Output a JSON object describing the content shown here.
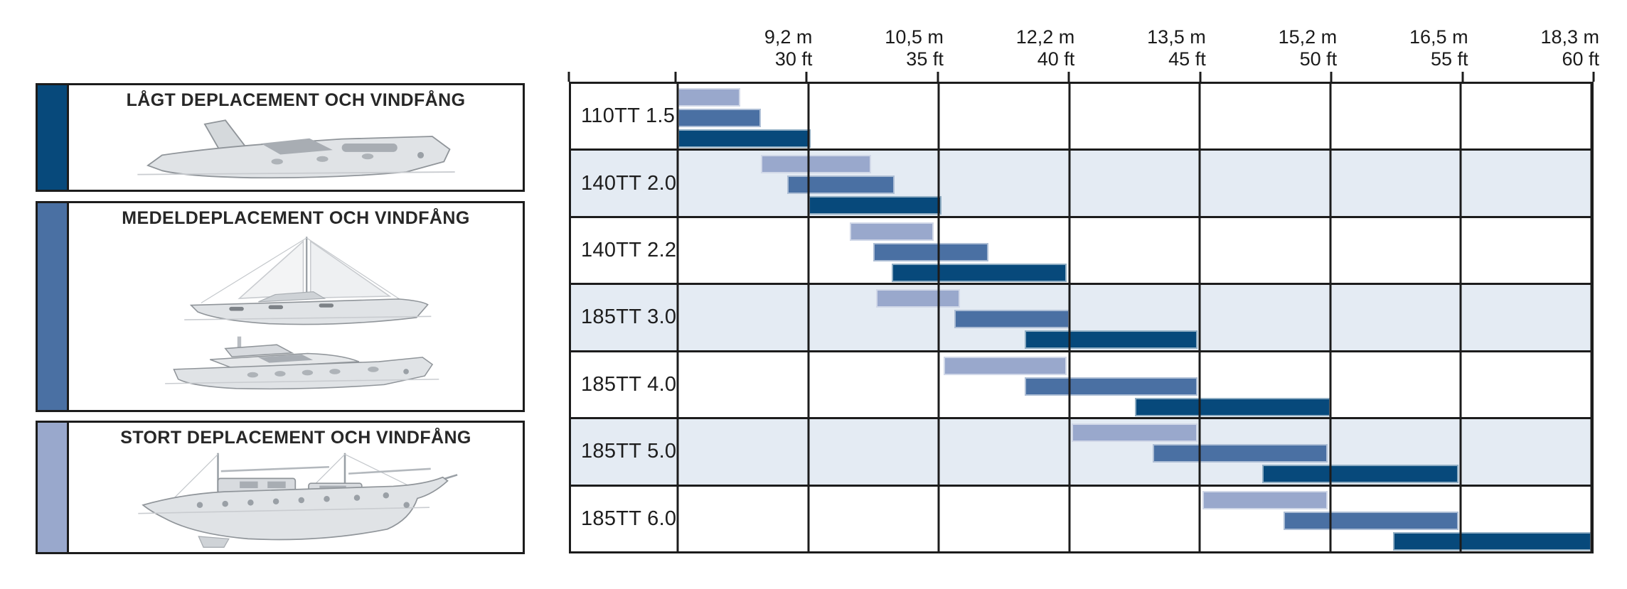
{
  "legend": {
    "boxes": [
      {
        "title": "LÅGT DEPLACEMENT OCH VINDFÅNG",
        "color": "#07497b",
        "boat": "sport-cruiser"
      },
      {
        "title": "MEDELDEPLACEMENT OCH VINDFÅNG",
        "color": "#4a70a3",
        "boat": "sailboat-and-motoryacht"
      },
      {
        "title": "STORT DEPLACEMENT OCH VINDFÅNG",
        "color": "#99a8cc",
        "boat": "classic-ketch"
      }
    ]
  },
  "chart_data": {
    "type": "bar",
    "subtype": "horizontal-range",
    "title": "",
    "x_axis": {
      "unit_top": "m",
      "unit_bottom": "ft",
      "min_ft": 25,
      "max_ft": 60,
      "grid": true,
      "ticks": [
        {
          "m": "9,2 m",
          "ft": "30 ft",
          "ft_value": 30
        },
        {
          "m": "10,5 m",
          "ft": "35 ft",
          "ft_value": 35
        },
        {
          "m": "12,2 m",
          "ft": "40 ft",
          "ft_value": 40
        },
        {
          "m": "13,5 m",
          "ft": "45 ft",
          "ft_value": 45
        },
        {
          "m": "15,2 m",
          "ft": "50 ft",
          "ft_value": 50
        },
        {
          "m": "16,5 m",
          "ft": "55 ft",
          "ft_value": 55
        },
        {
          "m": "18,3 m",
          "ft": "60 ft",
          "ft_value": 60
        }
      ]
    },
    "series_colors": {
      "light": "#99a8cc",
      "medium": "#4a70a3",
      "dark": "#07497b"
    },
    "series_meaning": {
      "dark": "LÅGT DEPLACEMENT OCH VINDFÅNG",
      "medium": "MEDELDEPLACEMENT OCH VINDFÅNG",
      "light": "STORT DEPLACEMENT OCH VINDFÅNG"
    },
    "row_alt_background": "#e4ebf3",
    "grid_color": "#1c1c1c",
    "rows": [
      {
        "label": "110TT 1.5",
        "bars": [
          {
            "series": "light",
            "start_ft": 25.0,
            "end_ft": 27.4
          },
          {
            "series": "medium",
            "start_ft": 25.0,
            "end_ft": 28.2
          },
          {
            "series": "dark",
            "start_ft": 25.0,
            "end_ft": 30.1
          }
        ]
      },
      {
        "label": "140TT 2.0",
        "bars": [
          {
            "series": "light",
            "start_ft": 28.2,
            "end_ft": 32.4
          },
          {
            "series": "medium",
            "start_ft": 29.2,
            "end_ft": 33.3
          },
          {
            "series": "dark",
            "start_ft": 30.0,
            "end_ft": 35.1
          }
        ]
      },
      {
        "label": "140TT 2.2",
        "bars": [
          {
            "series": "light",
            "start_ft": 31.6,
            "end_ft": 34.8
          },
          {
            "series": "medium",
            "start_ft": 32.5,
            "end_ft": 36.9
          },
          {
            "series": "dark",
            "start_ft": 33.2,
            "end_ft": 39.9
          }
        ]
      },
      {
        "label": "185TT 3.0",
        "bars": [
          {
            "series": "light",
            "start_ft": 32.6,
            "end_ft": 35.8
          },
          {
            "series": "medium",
            "start_ft": 35.6,
            "end_ft": 40.0
          },
          {
            "series": "dark",
            "start_ft": 38.3,
            "end_ft": 44.9
          }
        ]
      },
      {
        "label": "185TT 4.0",
        "bars": [
          {
            "series": "light",
            "start_ft": 35.2,
            "end_ft": 39.9
          },
          {
            "series": "medium",
            "start_ft": 38.3,
            "end_ft": 44.9
          },
          {
            "series": "dark",
            "start_ft": 42.5,
            "end_ft": 50.0
          }
        ]
      },
      {
        "label": "185TT 5.0",
        "bars": [
          {
            "series": "light",
            "start_ft": 40.1,
            "end_ft": 44.9
          },
          {
            "series": "medium",
            "start_ft": 43.2,
            "end_ft": 49.9
          },
          {
            "series": "dark",
            "start_ft": 47.4,
            "end_ft": 54.9
          }
        ]
      },
      {
        "label": "185TT 6.0",
        "bars": [
          {
            "series": "light",
            "start_ft": 45.1,
            "end_ft": 49.9
          },
          {
            "series": "medium",
            "start_ft": 48.2,
            "end_ft": 54.9
          },
          {
            "series": "dark",
            "start_ft": 52.4,
            "end_ft": 60.0
          }
        ]
      }
    ]
  }
}
